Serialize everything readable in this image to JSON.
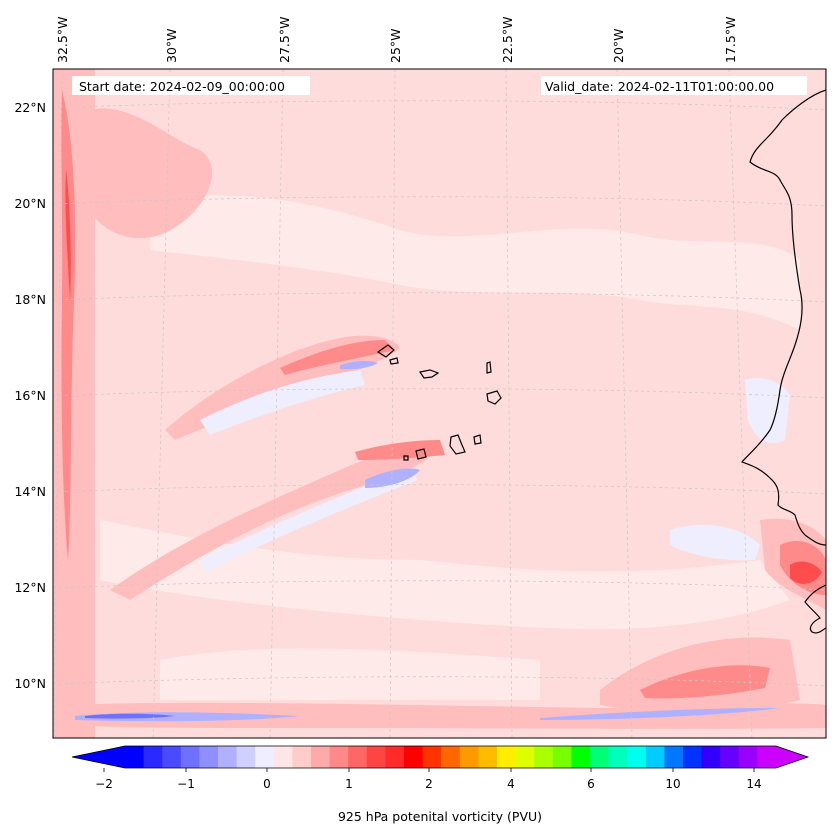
{
  "map": {
    "start_date_label": "Start date: 2024-02-09_00:00:00",
    "valid_date_label": "Valid_date: 2024-02-11T01:00:00.00",
    "longitude_labels": [
      "32.5°W",
      "30°W",
      "27.5°W",
      "25°W",
      "22.5°W",
      "20°W",
      "17.5°W"
    ],
    "latitude_labels": [
      "22°N",
      "20°N",
      "18°N",
      "16°N",
      "14°N",
      "12°N",
      "10°N"
    ],
    "field_colors": {
      "background": "#ffdcdc",
      "light": "#ffeaea",
      "medium": "#ffbdbd",
      "strong": "#ff8a8a",
      "intense": "#ff4c4c",
      "negative_light": "#eeeeff",
      "negative_medium": "#b0b0ff",
      "negative_strong": "#7070ff"
    }
  },
  "colorbar": {
    "label": "925 hPa potenital vorticity (PVU)",
    "tick_labels": [
      "−2",
      "−1",
      "0",
      "1",
      "2",
      "4",
      "6",
      "10",
      "14"
    ],
    "colors": [
      "#0000ff",
      "#2a2aff",
      "#4a4aff",
      "#7070ff",
      "#8f8fff",
      "#b0b0ff",
      "#d0d0ff",
      "#eeeeff",
      "#ffe6e6",
      "#ffcccc",
      "#ffaaaa",
      "#ff8888",
      "#ff6666",
      "#ff4444",
      "#ff2a2a",
      "#ff0000",
      "#ff3300",
      "#ff6600",
      "#ff9900",
      "#ffbb00",
      "#ffee00",
      "#ddff00",
      "#aaff00",
      "#77ff00",
      "#00ff00",
      "#00ff77",
      "#00ffbb",
      "#00ffee",
      "#00ccff",
      "#0077ff",
      "#0033ff",
      "#3300ff",
      "#6600ff",
      "#9900ff",
      "#cc00ff"
    ],
    "extend_min_color": "#0000ff",
    "extend_max_color": "#cc00ff"
  }
}
